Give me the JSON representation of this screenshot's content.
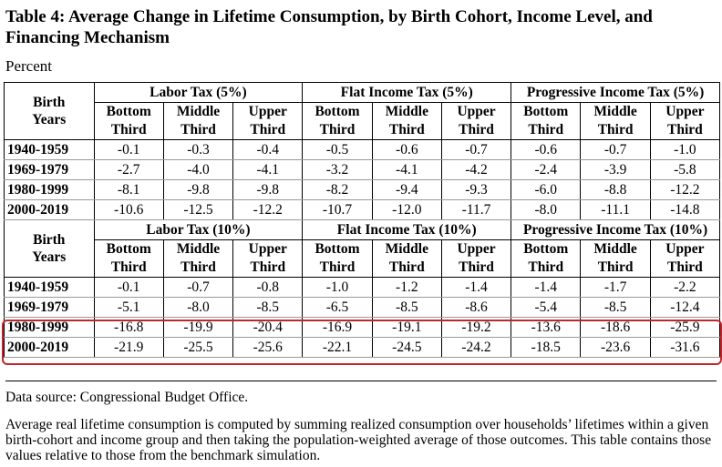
{
  "title": "Table 4: Average Change in Lifetime Consumption, by Birth Cohort, Income Level, and Financing Mechanism",
  "unit": "Percent",
  "row_header": [
    "Birth",
    "Years"
  ],
  "col_sub": [
    "Bottom",
    "Third",
    "Middle",
    "Third",
    "Upper",
    "Third"
  ],
  "panel1": {
    "groups": [
      "Labor Tax (5%)",
      "Flat Income Tax (5%)",
      "Progressive Income Tax (5%)"
    ],
    "rows": [
      {
        "year": "1940-1959",
        "v": [
          "-0.1",
          "-0.3",
          "-0.4",
          "-0.5",
          "-0.6",
          "-0.7",
          "-0.6",
          "-0.7",
          "-1.0"
        ]
      },
      {
        "year": "1969-1979",
        "v": [
          "-2.7",
          "-4.0",
          "-4.1",
          "-3.2",
          "-4.1",
          "-4.2",
          "-2.4",
          "-3.9",
          "-5.8"
        ]
      },
      {
        "year": "1980-1999",
        "v": [
          "-8.1",
          "-9.8",
          "-9.8",
          "-8.2",
          "-9.4",
          "-9.3",
          "-6.0",
          "-8.8",
          "-12.2"
        ]
      },
      {
        "year": "2000-2019",
        "v": [
          "-10.6",
          "-12.5",
          "-12.2",
          "-10.7",
          "-12.0",
          "-11.7",
          "-8.0",
          "-11.1",
          "-14.8"
        ]
      }
    ]
  },
  "panel2": {
    "groups": [
      "Labor Tax (10%)",
      "Flat Income Tax (10%)",
      "Progressive Income Tax (10%)"
    ],
    "rows": [
      {
        "year": "1940-1959",
        "v": [
          "-0.1",
          "-0.7",
          "-0.8",
          "-1.0",
          "-1.2",
          "-1.4",
          "-1.4",
          "-1.7",
          "-2.2"
        ]
      },
      {
        "year": "1969-1979",
        "v": [
          "-5.1",
          "-8.0",
          "-8.5",
          "-6.5",
          "-8.5",
          "-8.6",
          "-5.4",
          "-8.5",
          "-12.4"
        ]
      },
      {
        "year": "1980-1999",
        "v": [
          "-16.8",
          "-19.9",
          "-20.4",
          "-16.9",
          "-19.1",
          "-19.2",
          "-13.6",
          "-18.6",
          "-25.9"
        ]
      },
      {
        "year": "2000-2019",
        "v": [
          "-21.9",
          "-25.5",
          "-25.6",
          "-22.1",
          "-24.5",
          "-24.2",
          "-18.5",
          "-23.6",
          "-31.6"
        ]
      }
    ]
  },
  "source": "Data source: Congressional Budget Office.",
  "note": "Average real lifetime consumption is computed by summing realized consumption over households’ lifetimes within a given birth-cohort and income group and then taking the population-weighted average of those outcomes. This table contains those values relative to those from the benchmark simulation.",
  "highlight_color": "#c0262d"
}
